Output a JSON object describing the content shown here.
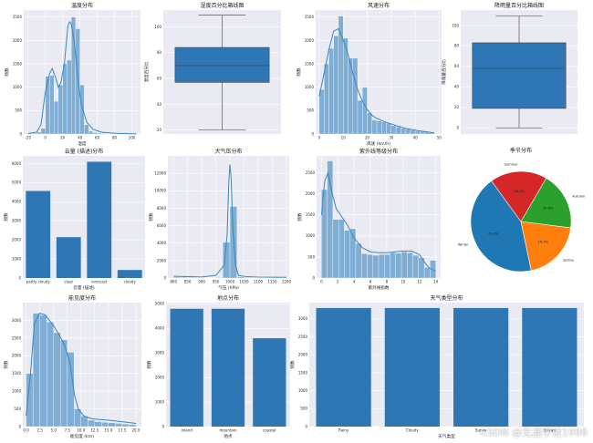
{
  "colors": {
    "bar": "#2f77b4",
    "hist": "#7fadd3",
    "kde": "#3a86bf",
    "panel": "#eaeaf2",
    "grid": "#ffffff",
    "box": "#2f77b4"
  },
  "watermark": "CSDN @无涯学徒1998",
  "chart_data": [
    {
      "id": "temp",
      "type": "histogram",
      "title": "温度分布",
      "xlabel": "温度",
      "ylabel": "频数",
      "xlim": [
        -25,
        110
      ],
      "ylim": [
        0,
        2650
      ],
      "bin_edges": [
        -20,
        -15,
        -10,
        -5,
        0,
        5,
        10,
        15,
        20,
        25,
        30,
        35,
        40,
        45,
        50,
        55,
        60,
        65,
        70,
        75,
        80,
        85,
        90,
        95,
        100,
        105
      ],
      "values": [
        10,
        20,
        40,
        120,
        1230,
        1250,
        700,
        1050,
        1500,
        1580,
        2500,
        2250,
        1050,
        200,
        60,
        30,
        20,
        15,
        10,
        8,
        6,
        5,
        4,
        3,
        2
      ],
      "kde_x": [
        -20,
        -10,
        -5,
        0,
        5,
        8,
        12,
        15,
        18,
        22,
        26,
        28,
        30,
        34,
        38,
        42,
        48,
        55,
        65,
        80,
        100,
        105
      ],
      "kde_y": [
        10,
        40,
        200,
        900,
        1300,
        1400,
        1200,
        1000,
        1100,
        1500,
        2300,
        2400,
        2350,
        1900,
        1100,
        600,
        250,
        100,
        40,
        15,
        5,
        2
      ],
      "xticks": [
        -20,
        0,
        20,
        40,
        60,
        80,
        100
      ],
      "yticks": [
        0,
        500,
        1000,
        1500,
        2000,
        2500
      ]
    },
    {
      "id": "humidity",
      "type": "box",
      "title": "湿度百分比箱线图",
      "ylabel": "湿度百分比",
      "ylim": [
        17,
        113
      ],
      "min": 20,
      "q1": 57,
      "median": 70,
      "q3": 84,
      "max": 109,
      "yticks": [
        20,
        40,
        60,
        80,
        100
      ]
    },
    {
      "id": "wind",
      "type": "histogram",
      "title": "风速分布",
      "xlabel": "风速 (km/h)",
      "ylabel": "频数",
      "xlim": [
        -1.5,
        51
      ],
      "ylim": [
        0,
        2650
      ],
      "bin_edges": [
        0,
        2,
        4,
        6,
        8,
        10,
        12,
        14,
        16,
        18,
        20,
        22,
        24,
        26,
        28,
        30,
        32,
        34,
        36,
        38,
        40,
        42,
        44,
        46,
        48
      ],
      "values": [
        950,
        1500,
        1830,
        2100,
        2520,
        2050,
        1620,
        1620,
        720,
        1000,
        450,
        300,
        280,
        260,
        230,
        180,
        150,
        120,
        100,
        80,
        60,
        50,
        40,
        30
      ],
      "kde_x": [
        0,
        2,
        4,
        6,
        8,
        10,
        12,
        14,
        16,
        18,
        20,
        22,
        24,
        28,
        32,
        36,
        40,
        44,
        48
      ],
      "kde_y": [
        800,
        1300,
        1800,
        2200,
        2250,
        2000,
        1700,
        1300,
        950,
        700,
        520,
        400,
        330,
        250,
        180,
        120,
        80,
        50,
        25
      ],
      "xticks": [
        0,
        10,
        20,
        30,
        40,
        50
      ],
      "yticks": [
        0,
        500,
        1000,
        1500,
        2000,
        2500
      ]
    },
    {
      "id": "precip",
      "type": "box",
      "title": "降雨量百分比箱线图",
      "ylabel": "降雨量百分比",
      "ylim": [
        -6,
        115
      ],
      "min": 0,
      "q1": 19,
      "median": 58,
      "q3": 83,
      "max": 109,
      "yticks": [
        0,
        20,
        40,
        60,
        80,
        100
      ]
    },
    {
      "id": "cloud",
      "type": "bar",
      "title": "云量 (描述)分布",
      "xlabel": "云量 (描述)",
      "ylabel": "频数",
      "ylim": [
        0,
        6400
      ],
      "categories": [
        "partly cloudy",
        "clear",
        "overcast",
        "cloudy"
      ],
      "values": [
        4560,
        2140,
        6090,
        420
      ],
      "yticks": [
        0,
        1000,
        2000,
        3000,
        4000,
        5000,
        6000
      ]
    },
    {
      "id": "pressure",
      "type": "histogram",
      "title": "大气压分布",
      "xlabel": "气压 (hPa)",
      "ylabel": "频数",
      "xlim": [
        780,
        1210
      ],
      "ylim": [
        0,
        14000
      ],
      "bin_edges": [
        800,
        825,
        850,
        875,
        900,
        925,
        950,
        975,
        1000,
        1025,
        1050,
        1075,
        1100,
        1125,
        1150,
        1175,
        1200
      ],
      "values": [
        100,
        80,
        60,
        40,
        30,
        40,
        60,
        4100,
        8200,
        120,
        60,
        40,
        30,
        20,
        10,
        5
      ],
      "kde_x": [
        800,
        900,
        950,
        980,
        990,
        996,
        1000,
        1004,
        1010,
        1020,
        1030,
        1060,
        1100,
        1200
      ],
      "kde_y": [
        200,
        120,
        300,
        1500,
        5000,
        11000,
        13000,
        11500,
        6000,
        1500,
        300,
        150,
        100,
        80
      ],
      "xticks": [
        800,
        850,
        900,
        950,
        1000,
        1050,
        1100,
        1150,
        1200
      ],
      "yticks": [
        0,
        2000,
        4000,
        6000,
        8000,
        10000,
        12000
      ]
    },
    {
      "id": "uv",
      "type": "histogram",
      "title": "紫外线等级分布",
      "xlabel": "紫外线指数",
      "ylabel": "频数",
      "xlim": [
        -0.6,
        14.6
      ],
      "ylim": [
        0,
        2900
      ],
      "bin_edges": [
        0,
        0.7,
        1.4,
        2.1,
        2.8,
        3.5,
        4.2,
        4.9,
        5.6,
        6.3,
        7.0,
        7.7,
        8.4,
        9.1,
        9.8,
        10.5,
        11.2,
        11.9,
        12.6,
        13.3,
        14.0
      ],
      "values": [
        2100,
        2780,
        1390,
        1390,
        1130,
        1170,
        820,
        580,
        560,
        540,
        560,
        560,
        600,
        590,
        620,
        600,
        540,
        480,
        250,
        420
      ],
      "kde_x": [
        0,
        0.4,
        0.8,
        1.2,
        1.8,
        2.5,
        3.2,
        4,
        5,
        6,
        7,
        8,
        9,
        10,
        11,
        12,
        12.6,
        13.2,
        14
      ],
      "kde_y": [
        1500,
        2300,
        2500,
        2100,
        1650,
        1450,
        1250,
        950,
        720,
        620,
        600,
        600,
        620,
        640,
        640,
        560,
        380,
        240,
        160
      ],
      "xticks": [
        0,
        2,
        4,
        6,
        8,
        10,
        12,
        14
      ],
      "yticks": [
        0,
        500,
        1000,
        1500,
        2000,
        2500
      ]
    },
    {
      "id": "season",
      "type": "pie",
      "title": "季节分布",
      "slices": [
        {
          "label": "Winter",
          "pct": "43.3%",
          "value": 43.3,
          "color": "#1f77b4"
        },
        {
          "label": "Spring",
          "pct": "19.7%",
          "value": 19.7,
          "color": "#ff7f0e"
        },
        {
          "label": "Autumn",
          "pct": "18.6%",
          "value": 18.6,
          "color": "#2ca02c"
        },
        {
          "label": "Summer",
          "pct": "18.4%",
          "value": 18.4,
          "color": "#d62728"
        }
      ]
    },
    {
      "id": "visibility",
      "type": "histogram",
      "title": "能见度分布",
      "xlabel": "能见度 (km)",
      "ylabel": "频数",
      "xlim": [
        -0.6,
        21
      ],
      "ylim": [
        0,
        3500
      ],
      "bin_edges": [
        0,
        1.25,
        2.5,
        3.75,
        5,
        6.25,
        7.5,
        8.75,
        10,
        11.25,
        12.5,
        13.75,
        15,
        16.25,
        17.5,
        18.75,
        20
      ],
      "values": [
        1500,
        3200,
        3150,
        2950,
        2650,
        2450,
        2100,
        500,
        300,
        180,
        140,
        120,
        110,
        90,
        70,
        60
      ],
      "kde_x": [
        0,
        0.8,
        1.5,
        2.5,
        3.5,
        5,
        6,
        7,
        8,
        8.8,
        9.5,
        10.5,
        12,
        15,
        18,
        20
      ],
      "kde_y": [
        300,
        1500,
        2900,
        3200,
        3150,
        2850,
        2600,
        2300,
        1800,
        900,
        500,
        300,
        220,
        180,
        130,
        90
      ],
      "xticks": [
        0,
        2.5,
        5,
        7.5,
        10,
        12.5,
        15,
        17.5,
        20
      ],
      "xtick_labels": [
        "0.0",
        "2.5",
        "5.0",
        "7.5",
        "10.0",
        "12.5",
        "15.0",
        "17.5",
        "20.0"
      ],
      "yticks": [
        0,
        500,
        1000,
        1500,
        2000,
        2500,
        3000
      ]
    },
    {
      "id": "location",
      "type": "bar",
      "title": "地点分布",
      "xlabel": "地点",
      "ylabel": "频数",
      "ylim": [
        0,
        5050
      ],
      "categories": [
        "inland",
        "mountain",
        "coastal"
      ],
      "values": [
        4800,
        4800,
        3600
      ],
      "yticks": [
        0,
        1000,
        2000,
        3000,
        4000,
        5000
      ]
    },
    {
      "id": "weather",
      "type": "bar",
      "title": "天气类型分布",
      "xlabel": "天气类型",
      "ylabel": "频数",
      "ylim": [
        0,
        3450
      ],
      "categories": [
        "Rainy",
        "Cloudy",
        "Sunny",
        "Snowy"
      ],
      "values": [
        3300,
        3300,
        3300,
        3300
      ],
      "yticks": [
        0,
        500,
        1000,
        1500,
        2000,
        2500,
        3000
      ]
    }
  ]
}
